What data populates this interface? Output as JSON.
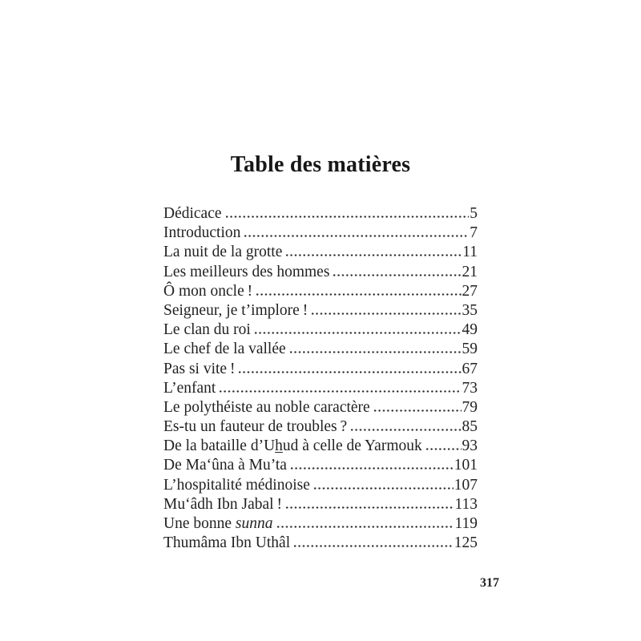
{
  "page": {
    "title": "Table des matières",
    "folio": "317"
  },
  "toc": {
    "entries": [
      {
        "pre": "Dédicace",
        "page": "5"
      },
      {
        "pre": "Introduction",
        "page": "7"
      },
      {
        "pre": "La nuit de la grotte",
        "page": "11"
      },
      {
        "pre": "Les meilleurs des hommes",
        "page": "21"
      },
      {
        "pre": "Ô mon oncle !",
        "page": "27"
      },
      {
        "pre": "Seigneur, je t’implore !",
        "page": "35"
      },
      {
        "pre": "Le clan du roi",
        "page": "49"
      },
      {
        "pre": "Le chef de la vallée",
        "page": "59"
      },
      {
        "pre": "Pas si vite !",
        "page": "67"
      },
      {
        "pre": "L’enfant",
        "page": "73"
      },
      {
        "pre": "Le polythéiste au noble caractère",
        "page": "79"
      },
      {
        "pre": "Es-tu un fauteur de troubles ?",
        "page": "85"
      },
      {
        "pre": "De la bataille d’U",
        "u": "h",
        "post": "ud à celle de Yarmouk",
        "page": "93"
      },
      {
        "pre": "De Ma‘ûna à Mu’ta",
        "page": "101"
      },
      {
        "pre": "L’hospitalité médinoise",
        "page": "107"
      },
      {
        "pre": "Mu‘âdh Ibn Jabal !",
        "page": "113"
      },
      {
        "pre": "Une bonne ",
        "it": "sunna",
        "page": "119"
      },
      {
        "pre": "Thumâma Ibn Uthâl",
        "page": "125"
      }
    ]
  }
}
